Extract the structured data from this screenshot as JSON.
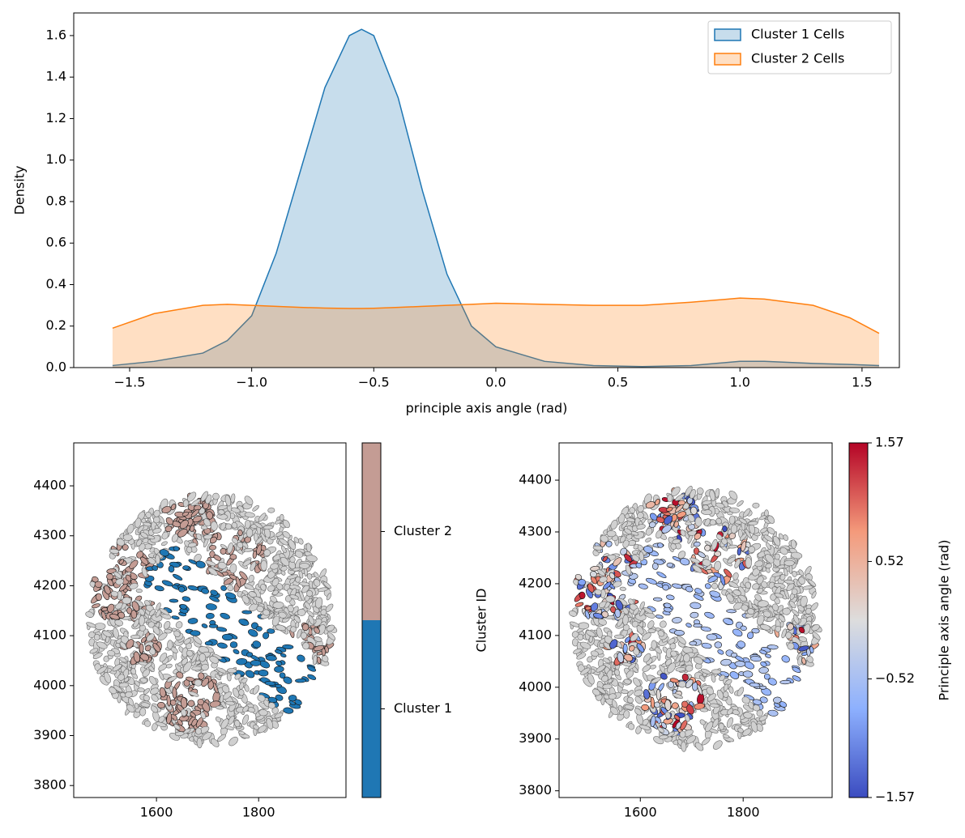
{
  "chart_data": [
    {
      "type": "kde",
      "xlabel": "principle axis angle (rad)",
      "ylabel": "Density",
      "x": [
        -1.57,
        -1.4,
        -1.2,
        -1.1,
        -1.0,
        -0.9,
        -0.8,
        -0.7,
        -0.6,
        -0.55,
        -0.5,
        -0.4,
        -0.3,
        -0.2,
        -0.1,
        0,
        0.2,
        0.4,
        0.6,
        0.8,
        1.0,
        1.1,
        1.3,
        1.45,
        1.57
      ],
      "series": [
        {
          "name": "Cluster 1 Cells",
          "color": "#1f77b4",
          "values": [
            0.01,
            0.03,
            0.07,
            0.13,
            0.25,
            0.55,
            0.95,
            1.35,
            1.6,
            1.63,
            1.6,
            1.3,
            0.85,
            0.45,
            0.2,
            0.1,
            0.03,
            0.01,
            0.005,
            0.01,
            0.03,
            0.03,
            0.02,
            0.015,
            0.01
          ]
        },
        {
          "name": "Cluster 2 Cells",
          "color": "#ff7f0e",
          "values": [
            0.19,
            0.26,
            0.3,
            0.305,
            0.3,
            0.295,
            0.29,
            0.287,
            0.285,
            0.285,
            0.286,
            0.29,
            0.295,
            0.3,
            0.305,
            0.31,
            0.305,
            0.3,
            0.3,
            0.315,
            0.335,
            0.33,
            0.3,
            0.24,
            0.165
          ]
        }
      ],
      "xlim": [
        -1.729,
        1.653
      ],
      "ylim": [
        0,
        1.709
      ],
      "xticks": [
        {
          "value": -1.5,
          "label": "−1.5"
        },
        {
          "value": -1.0,
          "label": "−1.0"
        },
        {
          "value": -0.5,
          "label": "−0.5"
        },
        {
          "value": 0,
          "label": "0.0"
        },
        0.5,
        {
          "value": 1.0,
          "label": "1.0"
        },
        1.5
      ],
      "yticks": [
        {
          "value": 0,
          "label": "0.0"
        },
        0.2,
        0.4,
        0.6,
        0.8,
        {
          "value": 1.0,
          "label": "1.0"
        },
        1.2,
        1.4,
        1.6
      ],
      "legend": "upper right"
    },
    {
      "type": "spatial",
      "xlim": [
        1438,
        1971
      ],
      "ylim": [
        3776,
        4486
      ],
      "xticks": [
        1600,
        1800
      ],
      "yticks": [
        3800,
        3900,
        4000,
        4100,
        4200,
        4300,
        4400
      ],
      "colorbar": {
        "label": "Cluster ID",
        "categories": [
          "Cluster 1",
          "Cluster 2"
        ],
        "colors": [
          "#1f77b4",
          "#c49c94"
        ]
      }
    },
    {
      "type": "spatial",
      "xlim": [
        1442,
        1973
      ],
      "ylim": [
        3787,
        4472
      ],
      "xticks": [
        1600,
        1800
      ],
      "yticks": [
        3800,
        3900,
        4000,
        4100,
        4200,
        4300,
        4400
      ],
      "colorbar": {
        "label": "Principle axis angle (rad)",
        "colormap": "coolwarm",
        "lim": [
          -1.57,
          1.57
        ],
        "ticks": [
          {
            "value": -1.57,
            "label": "−1.57"
          },
          {
            "value": -0.52,
            "label": "−0.52"
          },
          0.52,
          1.57
        ]
      }
    }
  ]
}
